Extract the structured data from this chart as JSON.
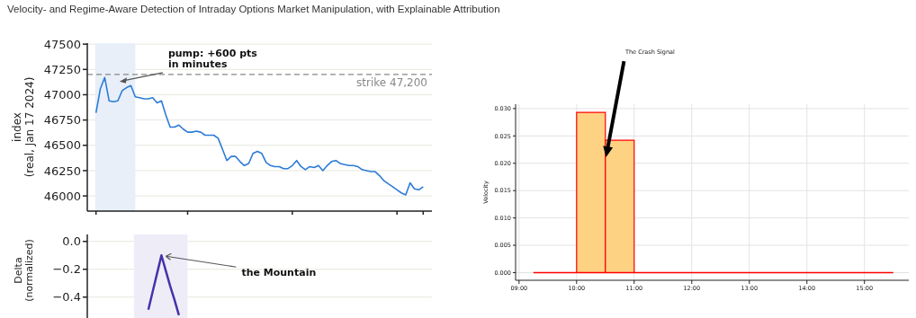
{
  "chart_data": [
    {
      "type": "line",
      "title": "Velocity- and Regime-Aware Detection of Intraday Options Market Manipulation, with Explainable Attribution",
      "ylabel": "index\n(real, Jan 17 2024)",
      "categories": [
        null,
        null,
        null,
        null,
        null,
        null,
        null,
        null,
        null,
        null,
        null,
        null,
        null,
        null,
        null,
        null,
        null,
        null,
        null,
        null,
        null,
        null,
        null,
        null,
        null,
        null,
        null,
        null,
        null,
        null,
        null,
        null,
        null,
        null,
        null,
        null,
        null,
        null,
        null,
        null,
        null,
        null,
        null,
        null,
        null,
        null,
        null,
        null,
        null,
        null,
        null,
        null,
        null,
        null,
        null,
        null,
        null,
        null,
        null,
        null,
        null,
        null,
        null,
        null,
        null,
        null,
        null,
        null,
        null,
        null,
        null,
        null,
        null,
        null,
        null,
        null
      ],
      "series": [
        {
          "color": "#2b7bd6",
          "values": [
            46820,
            47060,
            47170,
            46940,
            46930,
            46940,
            47040,
            47070,
            47090,
            46980,
            46970,
            46960,
            46960,
            46970,
            46920,
            46940,
            46800,
            46680,
            46680,
            46700,
            46660,
            46630,
            46630,
            46640,
            46630,
            46600,
            46600,
            46600,
            46570,
            46460,
            46350,
            46390,
            46390,
            46340,
            46300,
            46320,
            46420,
            46440,
            46420,
            46330,
            46300,
            46290,
            46290,
            46270,
            46270,
            46300,
            46350,
            46290,
            46260,
            46290,
            46280,
            46300,
            46250,
            46300,
            46340,
            46350,
            46320,
            46310,
            46300,
            46300,
            46290,
            46260,
            46250,
            46240,
            46240,
            46200,
            46150,
            46120,
            46090,
            46060,
            46030,
            46010,
            46130,
            46070,
            46060,
            46090
          ]
        }
      ],
      "ylim": [
        45850,
        47510
      ],
      "yticks": [
        46000,
        46250,
        46500,
        46750,
        47000,
        47250,
        47500
      ],
      "tick_labels": "y",
      "grid": "y",
      "ref_lines": [
        {
          "axis": "y",
          "value": 47200,
          "label": "strike 47,200",
          "color": "#888888",
          "line_style": "dashed"
        }
      ],
      "annotations": [
        "pump: +600 pts\nin minutes"
      ]
    },
    {
      "type": "line",
      "ylabel": "Delta\n(normalized)",
      "categories": [
        null,
        null,
        null,
        null,
        null,
        null,
        null,
        null,
        null,
        null,
        null,
        null,
        null,
        null,
        null,
        null,
        null,
        null,
        null,
        null,
        null,
        null,
        null,
        null,
        null,
        null,
        null,
        null,
        null,
        null,
        null,
        null,
        null,
        null,
        null,
        null,
        null,
        null,
        null,
        null,
        null,
        null,
        null,
        null,
        null,
        null,
        null,
        null,
        null,
        null,
        null,
        null,
        null,
        null,
        null,
        null,
        null,
        null,
        null,
        null,
        null,
        null,
        null,
        null,
        null,
        null,
        null,
        null,
        null,
        null,
        null,
        null,
        null,
        null,
        null,
        null
      ],
      "series": [
        {
          "color": "#4433aa",
          "values": [
            null,
            null,
            null,
            null,
            null,
            null,
            null,
            null,
            null,
            null,
            null,
            null,
            -0.49,
            -0.36,
            -0.23,
            -0.1,
            -0.21,
            -0.32,
            -0.42,
            -0.53,
            null,
            null,
            null,
            null,
            null,
            null,
            null,
            null,
            null,
            null,
            null,
            null,
            null,
            null,
            null,
            null,
            null,
            null,
            null,
            null,
            null,
            null,
            null,
            null,
            null,
            null,
            null,
            null,
            null,
            null,
            null,
            null,
            null,
            null,
            null,
            null,
            null,
            null,
            null,
            null,
            null,
            null,
            null,
            null,
            null,
            null,
            null,
            null,
            null,
            null,
            null,
            null,
            null,
            null,
            null,
            null
          ]
        }
      ],
      "ylim": [
        -0.55,
        0.05
      ],
      "yticks": [
        {
          "value": 0,
          "label": "0.0"
        },
        {
          "value": -0.2,
          "label": "−0.2"
        },
        {
          "value": -0.4,
          "label": "−0.4"
        }
      ],
      "tick_labels": "y",
      "grid": "y",
      "annotations": [
        "the Mountain"
      ]
    },
    {
      "type": "histogram",
      "ylabel": "Velocity",
      "bins": [
        10,
        10.5,
        11
      ],
      "values": [
        0.0293,
        0.0242
      ],
      "color": "#fed283",
      "series": [
        {
          "type": "line",
          "color": "#ff0000",
          "x": [
            9.25,
            15.5
          ],
          "values": [
            0,
            0
          ]
        }
      ],
      "xlim": [
        8.94,
        15.77
      ],
      "xticks": [
        {
          "value": 9,
          "label": "09:00"
        },
        {
          "value": 10,
          "label": "10:00"
        },
        {
          "value": 11,
          "label": "11:00"
        },
        {
          "value": 12,
          "label": "12:00"
        },
        {
          "value": 13,
          "label": "13:00"
        },
        {
          "value": 14,
          "label": "14:00"
        },
        {
          "value": 15,
          "label": "15:00"
        }
      ],
      "ylim": [
        -0.0014,
        0.0308
      ],
      "yticks": [
        {
          "value": 0,
          "label": "0.000"
        },
        {
          "value": 0.005,
          "label": "0.005"
        },
        {
          "value": 0.01,
          "label": "0.010"
        },
        {
          "value": 0.015,
          "label": "0.015"
        },
        {
          "value": 0.02,
          "label": "0.020"
        },
        {
          "value": 0.025,
          "label": "0.025"
        },
        {
          "value": 0.03,
          "label": "0.030"
        }
      ],
      "grid": true,
      "annotations": [
        "The Crash Signal"
      ]
    }
  ]
}
